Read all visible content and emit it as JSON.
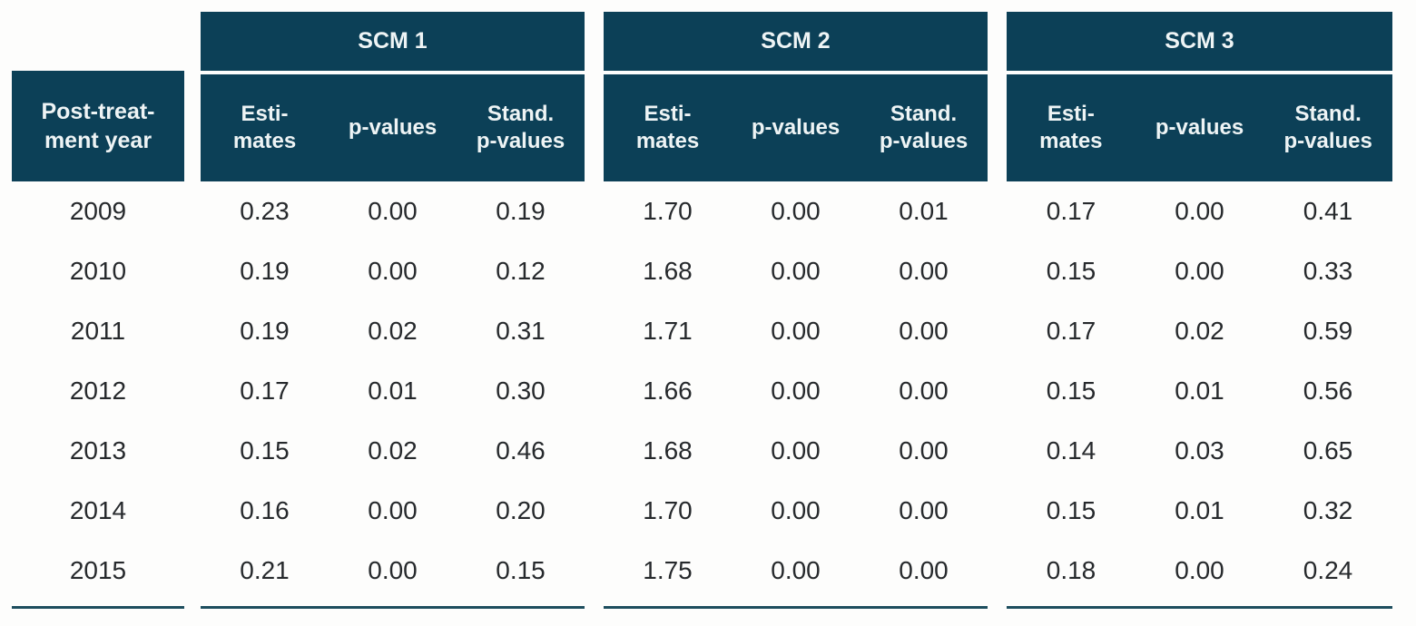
{
  "colors": {
    "header_background": "#0c4057",
    "header_text": "#eef4f5",
    "bottom_rule": "#1d4e5e",
    "body_text": "#26292c",
    "page_background": "#fdfdfc"
  },
  "headers": {
    "year": {
      "line1": "Post-treat-",
      "line2": "ment year"
    },
    "estimates": {
      "line1": "Esti-",
      "line2": "mates"
    },
    "p_values": "p-values",
    "stand_p_values": {
      "line1": "Stand.",
      "line2": "p-values"
    },
    "group_titles": [
      "SCM 1",
      "SCM 2",
      "SCM 3"
    ]
  },
  "chart_data": {
    "type": "table",
    "row_header": "Post-treatment year",
    "column_groups": [
      "SCM 1",
      "SCM 2",
      "SCM 3"
    ],
    "columns_per_group": [
      "Estimates",
      "p-values",
      "Stand. p-values"
    ],
    "years": [
      "2009",
      "2010",
      "2011",
      "2012",
      "2013",
      "2014",
      "2015"
    ],
    "rows": [
      [
        "2009",
        "0.23",
        "0.00",
        "0.19",
        "1.70",
        "0.00",
        "0.01",
        "0.17",
        "0.00",
        "0.41"
      ],
      [
        "2010",
        "0.19",
        "0.00",
        "0.12",
        "1.68",
        "0.00",
        "0.00",
        "0.15",
        "0.00",
        "0.33"
      ],
      [
        "2011",
        "0.19",
        "0.02",
        "0.31",
        "1.71",
        "0.00",
        "0.00",
        "0.17",
        "0.02",
        "0.59"
      ],
      [
        "2012",
        "0.17",
        "0.01",
        "0.30",
        "1.66",
        "0.00",
        "0.00",
        "0.15",
        "0.01",
        "0.56"
      ],
      [
        "2013",
        "0.15",
        "0.02",
        "0.46",
        "1.68",
        "0.00",
        "0.00",
        "0.14",
        "0.03",
        "0.65"
      ],
      [
        "2014",
        "0.16",
        "0.00",
        "0.20",
        "1.70",
        "0.00",
        "0.00",
        "0.15",
        "0.01",
        "0.32"
      ],
      [
        "2015",
        "0.21",
        "0.00",
        "0.15",
        "1.75",
        "0.00",
        "0.00",
        "0.18",
        "0.00",
        "0.24"
      ]
    ]
  }
}
